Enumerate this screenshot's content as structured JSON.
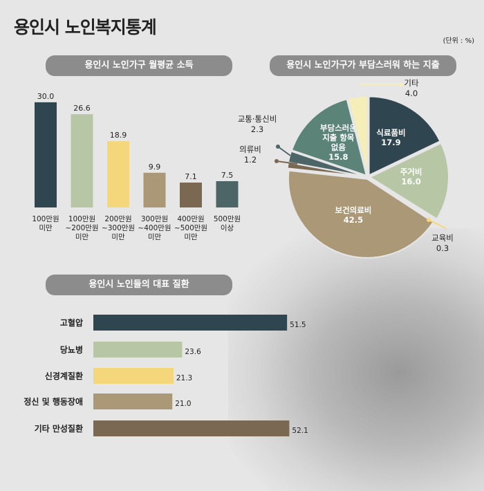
{
  "title": "용인시 노인복지통계",
  "unit": "(단위 : %)",
  "chart_data": [
    {
      "type": "bar",
      "title": "용인시 노인가구 월평균 소득",
      "categories": [
        "100만원\n미만",
        "100만원\n~200만원\n미만",
        "200만원\n~300만원\n미만",
        "300만원\n~400만원\n미만",
        "400만원\n~500만원\n미만",
        "500만원\n이상"
      ],
      "values": [
        30.0,
        26.6,
        18.9,
        9.9,
        7.1,
        7.5
      ],
      "colors": [
        "#2f4550",
        "#b7c7a5",
        "#f3d77a",
        "#ab9876",
        "#7a6852",
        "#4d6566"
      ],
      "ylim": [
        0,
        30
      ]
    },
    {
      "type": "pie",
      "title": "용인시 노인가구가 부담스러워 하는 지출",
      "labels": [
        "식료품비",
        "주거비",
        "교육비",
        "보건의료비",
        "의류비",
        "교통·통신비",
        "부담스러운\n지출 항목\n없음",
        "기타"
      ],
      "values": [
        17.9,
        16.0,
        0.3,
        42.5,
        1.2,
        2.3,
        15.8,
        4.0
      ],
      "colors": [
        "#2f4550",
        "#b7c7a5",
        "#f3d77a",
        "#ab9876",
        "#7a6852",
        "#4d6566",
        "#5b8378",
        "#f5eeb8"
      ]
    },
    {
      "type": "bar",
      "orientation": "horizontal",
      "title": "용인시 노인들의 대표 질환",
      "categories": [
        "고혈압",
        "당뇨병",
        "신경계질환",
        "정신 및 행동장애",
        "기타 만성질환"
      ],
      "values": [
        51.5,
        23.6,
        21.3,
        21.0,
        52.1
      ],
      "colors": [
        "#2f4550",
        "#b7c7a5",
        "#f3d77a",
        "#ab9876",
        "#7a6852"
      ]
    }
  ]
}
